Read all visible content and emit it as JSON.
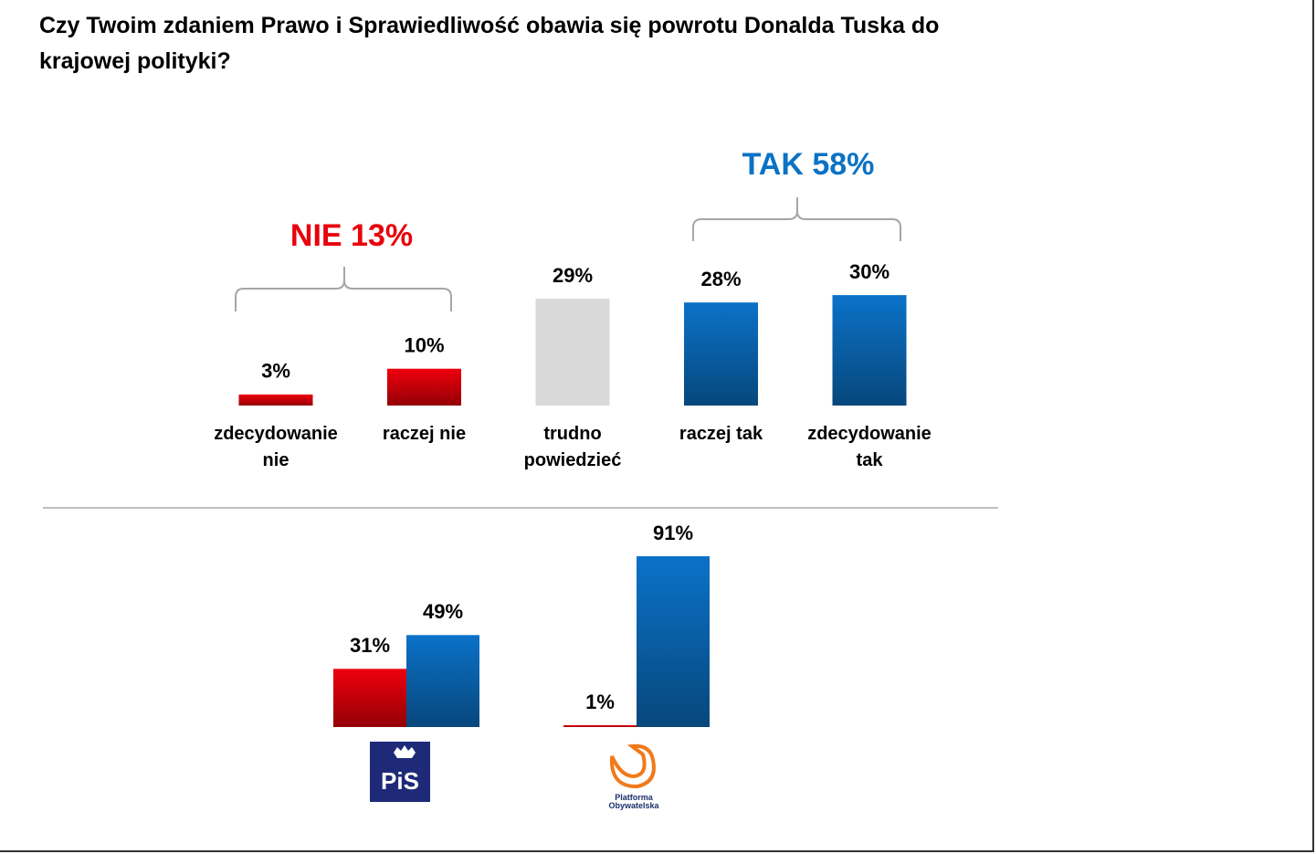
{
  "title": "Czy Twoim zdaniem Prawo i Sprawiedliwość obawia się powrotu Donalda Tuska do krajowej polityki?",
  "chart_data": [
    {
      "type": "bar",
      "annotations": [
        "NIE 13%",
        "TAK 58%"
      ],
      "categories": [
        "zdecydowanie nie",
        "raczej nie",
        "trudno powiedzieć",
        "raczej tak",
        "zdecydowanie tak"
      ],
      "values": [
        3,
        10,
        29,
        28,
        30
      ],
      "value_labels": [
        "3%",
        "10%",
        "29%",
        "28%",
        "30%"
      ],
      "colors": [
        "#ee000c",
        "#ee000c",
        "#d9d9d9",
        "#0b72c8",
        "#0b72c8"
      ]
    },
    {
      "type": "grouped_bar",
      "categories": [
        "PiS",
        "Platforma Obywatelska"
      ],
      "series": [
        {
          "color": "#ee000c",
          "values": [
            31,
            1
          ],
          "value_labels": [
            "31%",
            "1%"
          ]
        },
        {
          "color": "#0b72c8",
          "values": [
            49,
            91
          ],
          "value_labels": [
            "49%",
            "91%"
          ]
        }
      ]
    }
  ]
}
